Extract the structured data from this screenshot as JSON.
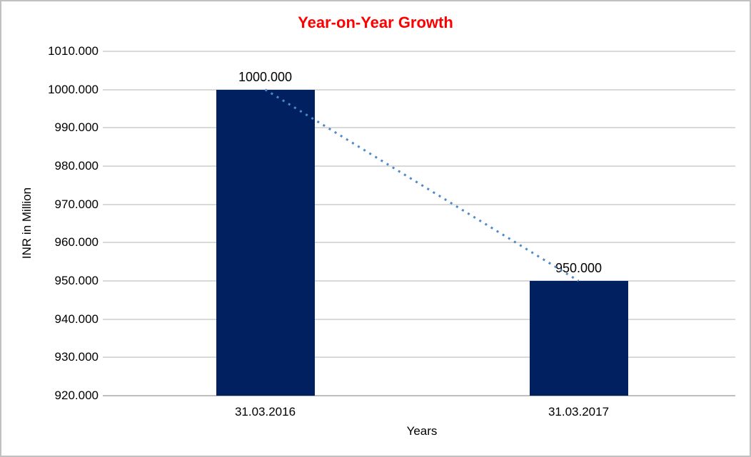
{
  "chart_data": {
    "type": "bar",
    "title": "Year-on-Year Growth",
    "title_color": "#FF0000",
    "xlabel": "Years",
    "ylabel": "INR in Million",
    "categories": [
      "31.03.2016",
      "31.03.2017"
    ],
    "values": [
      1000,
      950
    ],
    "value_labels": [
      "1000.000",
      "950.000"
    ],
    "ylim": [
      920,
      1010
    ],
    "ytick_step": 10,
    "ytick_labels": [
      "1010.000",
      "1000.000",
      "990.000",
      "980.000",
      "970.000",
      "960.000",
      "950.000",
      "940.000",
      "930.000",
      "920.000"
    ],
    "grid": "horizontal",
    "legend": null,
    "bar_color": "#002060",
    "gridline_color": "#D9D9D9",
    "axis_line_color": "#BFBFBF",
    "trendline": {
      "style": "dotted",
      "color": "#4E8AC8",
      "connects_values": [
        1000,
        950
      ]
    }
  }
}
